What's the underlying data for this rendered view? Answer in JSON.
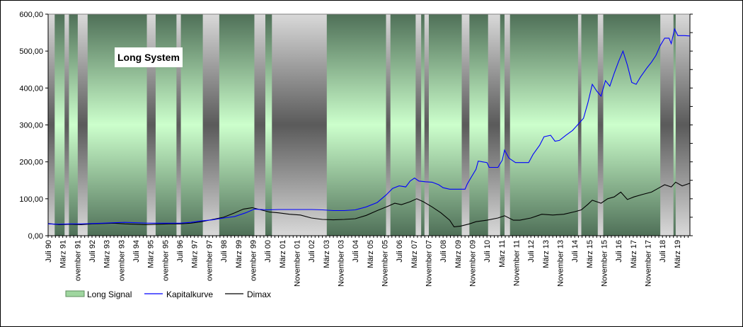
{
  "chart_data": {
    "type": "line",
    "title": "Long System",
    "ylim": [
      0,
      600
    ],
    "yticks": [
      "0,00",
      "100,00",
      "200,00",
      "300,00",
      "400,00",
      "500,00",
      "600,00"
    ],
    "x_start": 1990.5,
    "x_end": 2019.75,
    "x_ticks": [
      {
        "label": "Juli 90",
        "t": 1990.5
      },
      {
        "label": "März 91",
        "t": 1991.167
      },
      {
        "label": "ovember 91",
        "t": 1991.833
      },
      {
        "label": "Juli 92",
        "t": 1992.5
      },
      {
        "label": "März 93",
        "t": 1993.167
      },
      {
        "label": "ovember 93",
        "t": 1993.833
      },
      {
        "label": "Juli 94",
        "t": 1994.5
      },
      {
        "label": "März 95",
        "t": 1995.167
      },
      {
        "label": "ovember 95",
        "t": 1995.833
      },
      {
        "label": "Juli 96",
        "t": 1996.5
      },
      {
        "label": "März 97",
        "t": 1997.167
      },
      {
        "label": "ovember 97",
        "t": 1997.833
      },
      {
        "label": "Juli 98",
        "t": 1998.5
      },
      {
        "label": "März 99",
        "t": 1999.167
      },
      {
        "label": "ovember 99",
        "t": 1999.833
      },
      {
        "label": "Juli 00",
        "t": 2000.5
      },
      {
        "label": "März 01",
        "t": 2001.167
      },
      {
        "label": "November 01",
        "t": 2001.833
      },
      {
        "label": "Juli 02",
        "t": 2002.5
      },
      {
        "label": "März 03",
        "t": 2003.167
      },
      {
        "label": "November 03",
        "t": 2003.833
      },
      {
        "label": "Juli 04",
        "t": 2004.5
      },
      {
        "label": "März 05",
        "t": 2005.167
      },
      {
        "label": "November 05",
        "t": 2005.833
      },
      {
        "label": "Juli 06",
        "t": 2006.5
      },
      {
        "label": "März 07",
        "t": 2007.167
      },
      {
        "label": "November 07",
        "t": 2007.833
      },
      {
        "label": "Juli 08",
        "t": 2008.5
      },
      {
        "label": "März 09",
        "t": 2009.167
      },
      {
        "label": "November 09",
        "t": 2009.833
      },
      {
        "label": "Juli 10",
        "t": 2010.5
      },
      {
        "label": "März 11",
        "t": 2011.167
      },
      {
        "label": "November 11",
        "t": 2011.833
      },
      {
        "label": "Juli 12",
        "t": 2012.5
      },
      {
        "label": "März 13",
        "t": 2013.167
      },
      {
        "label": "November 13",
        "t": 2013.833
      },
      {
        "label": "Juli 14",
        "t": 2014.5
      },
      {
        "label": "März 15",
        "t": 2015.167
      },
      {
        "label": "November 15",
        "t": 2015.833
      },
      {
        "label": "Juli 16",
        "t": 2016.5
      },
      {
        "label": "März 17",
        "t": 2017.167
      },
      {
        "label": "November 17",
        "t": 2017.833
      },
      {
        "label": "Juli 18",
        "t": 2018.5
      },
      {
        "label": "März 19",
        "t": 2019.167
      }
    ],
    "long_signal_periods": [
      [
        1990.8,
        1991.25
      ],
      [
        1991.45,
        1991.85
      ],
      [
        1992.3,
        1995.0
      ],
      [
        1995.4,
        1996.35
      ],
      [
        1996.55,
        1997.55
      ],
      [
        1998.3,
        1999.9
      ],
      [
        2000.4,
        2000.7
      ],
      [
        2003.2,
        2005.9
      ],
      [
        2006.1,
        2007.25
      ],
      [
        2007.5,
        2007.65
      ],
      [
        2007.85,
        2009.35
      ],
      [
        2009.7,
        2010.55
      ],
      [
        2011.1,
        2011.3
      ],
      [
        2011.55,
        2014.65
      ],
      [
        2014.8,
        2015.55
      ],
      [
        2015.8,
        2018.4
      ],
      [
        2019.0,
        2019.1
      ]
    ],
    "series": [
      {
        "name": "Kapitalkurve",
        "color": "#0000ff",
        "points": [
          [
            1990.5,
            32
          ],
          [
            1991.0,
            31
          ],
          [
            1991.5,
            32
          ],
          [
            1992.0,
            32
          ],
          [
            1992.5,
            33
          ],
          [
            1993.0,
            34
          ],
          [
            1993.5,
            35
          ],
          [
            1994.0,
            36
          ],
          [
            1994.5,
            35
          ],
          [
            1995.0,
            34
          ],
          [
            1995.5,
            34
          ],
          [
            1996.0,
            34
          ],
          [
            1996.5,
            34
          ],
          [
            1997.0,
            36
          ],
          [
            1997.5,
            40
          ],
          [
            1998.0,
            43
          ],
          [
            1998.5,
            48
          ],
          [
            1999.0,
            52
          ],
          [
            1999.5,
            62
          ],
          [
            1999.9,
            72
          ],
          [
            2000.5,
            70
          ],
          [
            2001.0,
            71
          ],
          [
            2001.5,
            71
          ],
          [
            2002.0,
            71
          ],
          [
            2002.5,
            71
          ],
          [
            2003.0,
            70
          ],
          [
            2003.5,
            68
          ],
          [
            2004.0,
            68
          ],
          [
            2004.5,
            70
          ],
          [
            2005.0,
            78
          ],
          [
            2005.5,
            90
          ],
          [
            2005.9,
            110
          ],
          [
            2006.2,
            128
          ],
          [
            2006.5,
            135
          ],
          [
            2006.8,
            132
          ],
          [
            2007.0,
            148
          ],
          [
            2007.2,
            156
          ],
          [
            2007.4,
            148
          ],
          [
            2007.7,
            146
          ],
          [
            2008.0,
            145
          ],
          [
            2008.3,
            138
          ],
          [
            2008.5,
            130
          ],
          [
            2008.8,
            126
          ],
          [
            2009.2,
            126
          ],
          [
            2009.5,
            126
          ],
          [
            2009.6,
            140
          ],
          [
            2009.8,
            160
          ],
          [
            2010.0,
            180
          ],
          [
            2010.1,
            202
          ],
          [
            2010.3,
            200
          ],
          [
            2010.5,
            198
          ],
          [
            2010.6,
            185
          ],
          [
            2011.0,
            185
          ],
          [
            2011.2,
            205
          ],
          [
            2011.3,
            232
          ],
          [
            2011.5,
            210
          ],
          [
            2011.8,
            198
          ],
          [
            2012.1,
            198
          ],
          [
            2012.4,
            198
          ],
          [
            2012.6,
            220
          ],
          [
            2012.9,
            245
          ],
          [
            2013.1,
            268
          ],
          [
            2013.4,
            272
          ],
          [
            2013.6,
            256
          ],
          [
            2013.8,
            258
          ],
          [
            2014.1,
            272
          ],
          [
            2014.4,
            285
          ],
          [
            2014.6,
            298
          ],
          [
            2014.9,
            318
          ],
          [
            2015.1,
            360
          ],
          [
            2015.3,
            410
          ],
          [
            2015.5,
            392
          ],
          [
            2015.7,
            378
          ],
          [
            2015.9,
            420
          ],
          [
            2016.1,
            405
          ],
          [
            2016.3,
            440
          ],
          [
            2016.5,
            472
          ],
          [
            2016.7,
            500
          ],
          [
            2016.9,
            462
          ],
          [
            2017.1,
            415
          ],
          [
            2017.3,
            410
          ],
          [
            2017.5,
            430
          ],
          [
            2017.8,
            455
          ],
          [
            2018.0,
            470
          ],
          [
            2018.2,
            488
          ],
          [
            2018.4,
            515
          ],
          [
            2018.6,
            535
          ],
          [
            2018.8,
            535
          ],
          [
            2018.9,
            520
          ],
          [
            2019.05,
            560
          ],
          [
            2019.2,
            542
          ],
          [
            2019.5,
            542
          ],
          [
            2019.75,
            541
          ]
        ]
      },
      {
        "name": "Dimax",
        "color": "#000000",
        "points": [
          [
            1990.5,
            33
          ],
          [
            1991.0,
            30
          ],
          [
            1991.5,
            31
          ],
          [
            1992.0,
            30
          ],
          [
            1992.5,
            32
          ],
          [
            1993.0,
            33
          ],
          [
            1993.5,
            34
          ],
          [
            1994.0,
            32
          ],
          [
            1994.5,
            31
          ],
          [
            1995.0,
            30
          ],
          [
            1995.5,
            31
          ],
          [
            1996.0,
            32
          ],
          [
            1996.5,
            32
          ],
          [
            1997.0,
            34
          ],
          [
            1997.5,
            38
          ],
          [
            1998.0,
            44
          ],
          [
            1998.5,
            50
          ],
          [
            1999.0,
            62
          ],
          [
            1999.4,
            72
          ],
          [
            1999.8,
            76
          ],
          [
            2000.2,
            70
          ],
          [
            2000.6,
            64
          ],
          [
            2001.0,
            62
          ],
          [
            2001.5,
            58
          ],
          [
            2002.0,
            56
          ],
          [
            2002.5,
            48
          ],
          [
            2003.0,
            44
          ],
          [
            2003.5,
            43
          ],
          [
            2004.0,
            44
          ],
          [
            2004.5,
            46
          ],
          [
            2005.0,
            55
          ],
          [
            2005.5,
            68
          ],
          [
            2006.0,
            80
          ],
          [
            2006.3,
            88
          ],
          [
            2006.6,
            84
          ],
          [
            2007.0,
            92
          ],
          [
            2007.3,
            100
          ],
          [
            2007.6,
            92
          ],
          [
            2008.0,
            78
          ],
          [
            2008.4,
            62
          ],
          [
            2008.8,
            42
          ],
          [
            2009.0,
            24
          ],
          [
            2009.3,
            26
          ],
          [
            2009.7,
            32
          ],
          [
            2010.0,
            38
          ],
          [
            2010.5,
            42
          ],
          [
            2011.0,
            48
          ],
          [
            2011.3,
            54
          ],
          [
            2011.7,
            42
          ],
          [
            2012.0,
            42
          ],
          [
            2012.5,
            48
          ],
          [
            2013.0,
            58
          ],
          [
            2013.5,
            56
          ],
          [
            2014.0,
            58
          ],
          [
            2014.5,
            65
          ],
          [
            2014.8,
            70
          ],
          [
            2015.1,
            85
          ],
          [
            2015.3,
            96
          ],
          [
            2015.7,
            88
          ],
          [
            2016.0,
            100
          ],
          [
            2016.3,
            105
          ],
          [
            2016.6,
            118
          ],
          [
            2016.9,
            98
          ],
          [
            2017.2,
            105
          ],
          [
            2017.6,
            112
          ],
          [
            2018.0,
            118
          ],
          [
            2018.3,
            128
          ],
          [
            2018.6,
            138
          ],
          [
            2018.9,
            132
          ],
          [
            2019.1,
            145
          ],
          [
            2019.4,
            135
          ],
          [
            2019.75,
            142
          ]
        ]
      }
    ],
    "legend": [
      {
        "label": "Long Signal",
        "kind": "swatch"
      },
      {
        "label": "Kapitalkurve",
        "kind": "line",
        "color": "#0000ff"
      },
      {
        "label": "Dimax",
        "kind": "line",
        "color": "#000000"
      }
    ],
    "legend_position": "bottom-left",
    "grid": false
  }
}
